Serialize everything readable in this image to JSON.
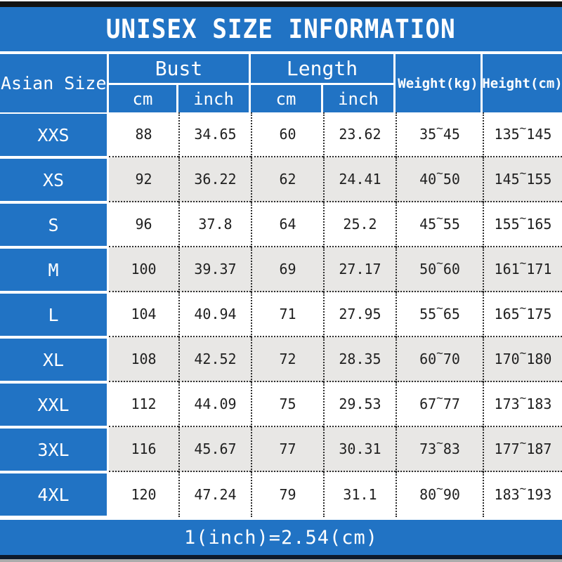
{
  "title": "UNISEX SIZE INFORMATION",
  "header": {
    "corner": "Asian Size",
    "bust": {
      "label": "Bust",
      "units": [
        "cm",
        "inch"
      ]
    },
    "length": {
      "label": "Length",
      "units": [
        "cm",
        "inch"
      ]
    },
    "weight": "Weight(kg)",
    "height": "Height(cm)"
  },
  "tilde": "~",
  "rows": [
    {
      "size": "XXS",
      "bust_cm": "88",
      "bust_inch": "34.65",
      "len_cm": "60",
      "len_inch": "23.62",
      "w_min": "35",
      "w_max": "45",
      "h_min": "135",
      "h_max": "145"
    },
    {
      "size": "XS",
      "bust_cm": "92",
      "bust_inch": "36.22",
      "len_cm": "62",
      "len_inch": "24.41",
      "w_min": "40",
      "w_max": "50",
      "h_min": "145",
      "h_max": "155"
    },
    {
      "size": "S",
      "bust_cm": "96",
      "bust_inch": "37.8",
      "len_cm": "64",
      "len_inch": "25.2",
      "w_min": "45",
      "w_max": "55",
      "h_min": "155",
      "h_max": "165"
    },
    {
      "size": "M",
      "bust_cm": "100",
      "bust_inch": "39.37",
      "len_cm": "69",
      "len_inch": "27.17",
      "w_min": "50",
      "w_max": "60",
      "h_min": "161",
      "h_max": "171"
    },
    {
      "size": "L",
      "bust_cm": "104",
      "bust_inch": "40.94",
      "len_cm": "71",
      "len_inch": "27.95",
      "w_min": "55",
      "w_max": "65",
      "h_min": "165",
      "h_max": "175"
    },
    {
      "size": "XL",
      "bust_cm": "108",
      "bust_inch": "42.52",
      "len_cm": "72",
      "len_inch": "28.35",
      "w_min": "60",
      "w_max": "70",
      "h_min": "170",
      "h_max": "180"
    },
    {
      "size": "XXL",
      "bust_cm": "112",
      "bust_inch": "44.09",
      "len_cm": "75",
      "len_inch": "29.53",
      "w_min": "67",
      "w_max": "77",
      "h_min": "173",
      "h_max": "183"
    },
    {
      "size": "3XL",
      "bust_cm": "116",
      "bust_inch": "45.67",
      "len_cm": "77",
      "len_inch": "30.31",
      "w_min": "73",
      "w_max": "83",
      "h_min": "177",
      "h_max": "187"
    },
    {
      "size": "4XL",
      "bust_cm": "120",
      "bust_inch": "47.24",
      "len_cm": "79",
      "len_inch": "31.1",
      "w_min": "80",
      "w_max": "90",
      "h_min": "183",
      "h_max": "193"
    }
  ],
  "footer_note": "1(inch)=2.54(cm)",
  "colors": {
    "accent_blue": "#2173c4",
    "row_alt_gray": "#e8e7e5",
    "text_dark": "#1f1f1f",
    "border_white": "#ffffff",
    "dotted_black": "#2e2e2e"
  }
}
